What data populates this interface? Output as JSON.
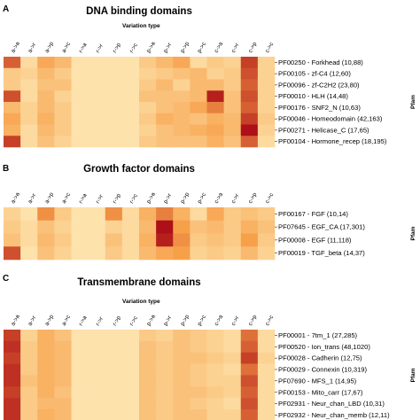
{
  "chart_data": [
    {
      "type": "heatmap",
      "panel": "A",
      "title": "DNA binding domains",
      "xlabel": "Variation type",
      "ylabel": "Pfam",
      "columns": [
        "a->a",
        "a->r",
        "a->p",
        "a->c",
        "r->a",
        "r->r",
        "r->p",
        "r->c",
        "p->a",
        "p->r",
        "p->p",
        "p->c",
        "c->a",
        "c->r",
        "c->p",
        "c->c"
      ],
      "rows": [
        "PF00250 - Forkhead (10,88)",
        "PF00105 - zf-C4 (12,60)",
        "PF00096 - zf-C2H2 (23,80)",
        "PF00010 - HLH (14,48)",
        "PF00176 - SNF2_N (10,63)",
        "PF00046 - Homeodomain (42,163)",
        "PF00271 - Helicase_C (17,65)",
        "PF00104 - Hormone_recep (18,195)"
      ],
      "values": [
        [
          0.7,
          0.15,
          0.45,
          0.35,
          0.1,
          0.1,
          0.1,
          0.1,
          0.25,
          0.35,
          0.45,
          0.15,
          0.25,
          0.2,
          0.8,
          0.2
        ],
        [
          0.25,
          0.2,
          0.35,
          0.25,
          0.1,
          0.1,
          0.1,
          0.1,
          0.2,
          0.25,
          0.3,
          0.35,
          0.2,
          0.25,
          0.75,
          0.2
        ],
        [
          0.25,
          0.15,
          0.3,
          0.3,
          0.1,
          0.1,
          0.1,
          0.1,
          0.25,
          0.35,
          0.2,
          0.35,
          0.35,
          0.25,
          0.7,
          0.2
        ],
        [
          0.75,
          0.15,
          0.35,
          0.2,
          0.1,
          0.1,
          0.1,
          0.1,
          0.3,
          0.3,
          0.3,
          0.35,
          0.9,
          0.3,
          0.75,
          0.2
        ],
        [
          0.35,
          0.2,
          0.35,
          0.25,
          0.1,
          0.1,
          0.1,
          0.1,
          0.2,
          0.3,
          0.35,
          0.45,
          0.6,
          0.3,
          0.7,
          0.2
        ],
        [
          0.45,
          0.2,
          0.4,
          0.25,
          0.1,
          0.1,
          0.1,
          0.1,
          0.25,
          0.4,
          0.35,
          0.3,
          0.4,
          0.35,
          0.8,
          0.25
        ],
        [
          0.4,
          0.15,
          0.35,
          0.25,
          0.1,
          0.1,
          0.1,
          0.1,
          0.2,
          0.3,
          0.35,
          0.4,
          0.45,
          0.35,
          0.95,
          0.2
        ],
        [
          0.8,
          0.15,
          0.3,
          0.2,
          0.1,
          0.1,
          0.1,
          0.1,
          0.25,
          0.3,
          0.3,
          0.3,
          0.4,
          0.3,
          0.7,
          0.15
        ]
      ]
    },
    {
      "type": "heatmap",
      "panel": "B",
      "title": "Growth factor domains",
      "xlabel": "",
      "ylabel": "Pfam",
      "columns": [
        "a->a",
        "a->r",
        "a->p",
        "a->c",
        "r->a",
        "r->r",
        "r->p",
        "r->c",
        "p->a",
        "p->r",
        "p->p",
        "p->c",
        "c->a",
        "c->r",
        "c->p",
        "c->c"
      ],
      "rows": [
        "PF00167 - FGF (10,14)",
        "PF07645 - EGF_CA (17,301)",
        "PF00008 - EGF (11,118)",
        "PF00019 - TGF_beta (14,37)"
      ],
      "values": [
        [
          0.2,
          0.1,
          0.55,
          0.25,
          0.1,
          0.1,
          0.55,
          0.15,
          0.4,
          0.6,
          0.4,
          0.15,
          0.45,
          0.25,
          0.3,
          0.25
        ],
        [
          0.25,
          0.15,
          0.3,
          0.2,
          0.1,
          0.1,
          0.2,
          0.15,
          0.35,
          0.95,
          0.5,
          0.3,
          0.35,
          0.25,
          0.4,
          0.3
        ],
        [
          0.3,
          0.15,
          0.35,
          0.25,
          0.1,
          0.1,
          0.3,
          0.15,
          0.4,
          0.9,
          0.55,
          0.25,
          0.3,
          0.25,
          0.5,
          0.25
        ],
        [
          0.75,
          0.1,
          0.3,
          0.2,
          0.1,
          0.1,
          0.25,
          0.15,
          0.35,
          0.45,
          0.5,
          0.2,
          0.25,
          0.2,
          0.35,
          0.2
        ]
      ]
    },
    {
      "type": "heatmap",
      "panel": "C",
      "title": "Transmembrane domains",
      "xlabel": "Variation type",
      "ylabel": "Pfam",
      "columns": [
        "a->a",
        "a->r",
        "a->p",
        "a->c",
        "r->a",
        "r->r",
        "r->p",
        "r->c",
        "p->a",
        "p->r",
        "p->p",
        "p->c",
        "c->a",
        "c->r",
        "c->p",
        "c->c"
      ],
      "rows": [
        "PF00001 - 7tm_1 (27,285)",
        "PF00520 - Ion_trans (48,1020)",
        "PF00028 - Cadherin (12,75)",
        "PF00029 - Connexin (10,319)",
        "PF07690 - MFS_1 (14,95)",
        "PF00153 - Mito_carr (17,67)",
        "PF02931 - Neur_chan_LBD (10,31)",
        "PF02932 - Neur_chan_memb (12,11)"
      ],
      "values": [
        [
          0.8,
          0.2,
          0.4,
          0.3,
          0.1,
          0.1,
          0.1,
          0.1,
          0.25,
          0.2,
          0.3,
          0.25,
          0.2,
          0.15,
          0.65,
          0.15
        ],
        [
          0.85,
          0.25,
          0.4,
          0.35,
          0.1,
          0.1,
          0.1,
          0.1,
          0.3,
          0.25,
          0.3,
          0.25,
          0.2,
          0.15,
          0.7,
          0.15
        ],
        [
          0.8,
          0.25,
          0.4,
          0.35,
          0.1,
          0.1,
          0.1,
          0.1,
          0.3,
          0.25,
          0.3,
          0.3,
          0.25,
          0.2,
          0.8,
          0.2
        ],
        [
          0.85,
          0.25,
          0.4,
          0.35,
          0.1,
          0.1,
          0.1,
          0.1,
          0.3,
          0.25,
          0.3,
          0.25,
          0.2,
          0.15,
          0.65,
          0.15
        ],
        [
          0.85,
          0.3,
          0.4,
          0.35,
          0.1,
          0.1,
          0.1,
          0.1,
          0.3,
          0.25,
          0.3,
          0.25,
          0.2,
          0.2,
          0.75,
          0.15
        ],
        [
          0.8,
          0.25,
          0.4,
          0.3,
          0.1,
          0.1,
          0.1,
          0.1,
          0.3,
          0.25,
          0.3,
          0.3,
          0.25,
          0.2,
          0.7,
          0.15
        ],
        [
          0.85,
          0.25,
          0.35,
          0.35,
          0.1,
          0.1,
          0.1,
          0.1,
          0.3,
          0.25,
          0.3,
          0.25,
          0.2,
          0.15,
          0.75,
          0.15
        ],
        [
          0.85,
          0.25,
          0.4,
          0.35,
          0.1,
          0.1,
          0.1,
          0.1,
          0.3,
          0.25,
          0.3,
          0.3,
          0.2,
          0.2,
          0.7,
          0.15
        ]
      ]
    }
  ],
  "colors": {
    "low": "#fff3c4",
    "mid": "#f7a04a",
    "high": "#a50012"
  }
}
